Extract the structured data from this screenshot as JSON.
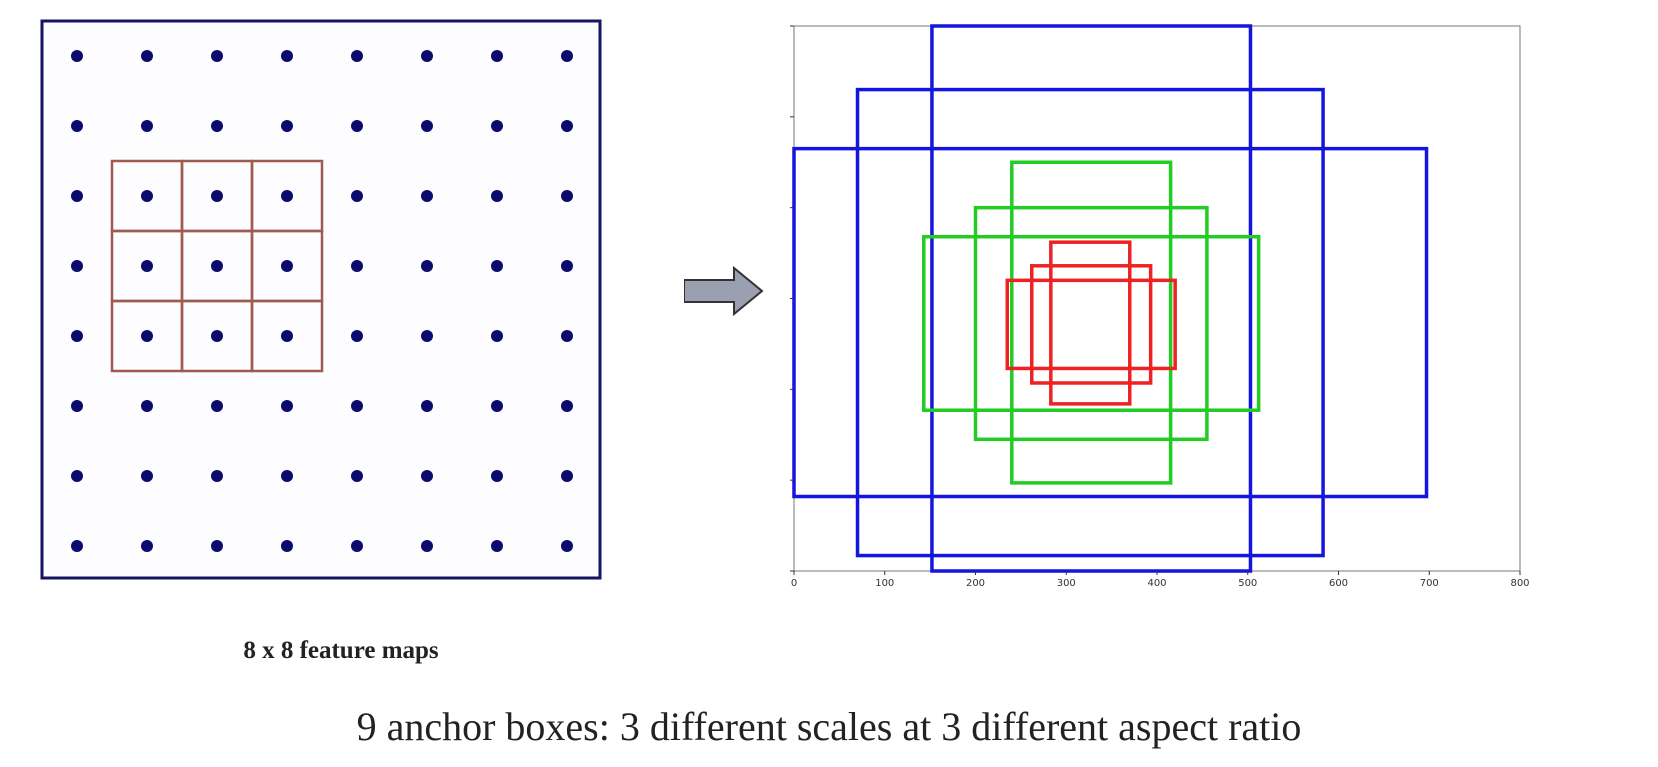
{
  "feature_map": {
    "rows": 8,
    "cols": 8,
    "caption": "8 x 8 feature maps",
    "dot_color": "#0b0b6e",
    "border_color": "#151560",
    "highlight": {
      "row_start": 2,
      "col_start": 1,
      "size": 3,
      "color": "#a05a50"
    }
  },
  "arrow": {
    "fill": "#9aa0b0",
    "stroke": "#333333"
  },
  "chart_data": {
    "type": "anchor-boxes",
    "xlim": [
      0,
      800
    ],
    "ylim": [
      600,
      0
    ],
    "xticks": [
      "0",
      "100",
      "200",
      "300",
      "400",
      "500",
      "600",
      "700",
      "800"
    ],
    "yticks": [
      "0",
      "100",
      "200",
      "300",
      "400",
      "500",
      "600"
    ],
    "boxes": [
      {
        "scale": "large",
        "color": "#1515e0",
        "x1": 70,
        "y1": 70,
        "x2": 583,
        "y2": 583
      },
      {
        "scale": "large",
        "color": "#1515e0",
        "x1": 0,
        "y1": 135,
        "x2": 697,
        "y2": 518
      },
      {
        "scale": "large",
        "color": "#1515e0",
        "x1": 152,
        "y1": 0,
        "x2": 503,
        "y2": 600
      },
      {
        "scale": "medium",
        "color": "#22cc22",
        "x1": 200,
        "y1": 200,
        "x2": 455,
        "y2": 455
      },
      {
        "scale": "medium",
        "color": "#22cc22",
        "x1": 143,
        "y1": 232,
        "x2": 512,
        "y2": 423
      },
      {
        "scale": "medium",
        "color": "#22cc22",
        "x1": 240,
        "y1": 150,
        "x2": 415,
        "y2": 503
      },
      {
        "scale": "small",
        "color": "#ee2222",
        "x1": 262,
        "y1": 264,
        "x2": 393,
        "y2": 393
      },
      {
        "scale": "small",
        "color": "#ee2222",
        "x1": 235,
        "y1": 280,
        "x2": 420,
        "y2": 377
      },
      {
        "scale": "small",
        "color": "#ee2222",
        "x1": 283,
        "y1": 238,
        "x2": 370,
        "y2": 416
      }
    ]
  },
  "caption": "9 anchor boxes: 3 different scales at 3 different aspect ratio"
}
